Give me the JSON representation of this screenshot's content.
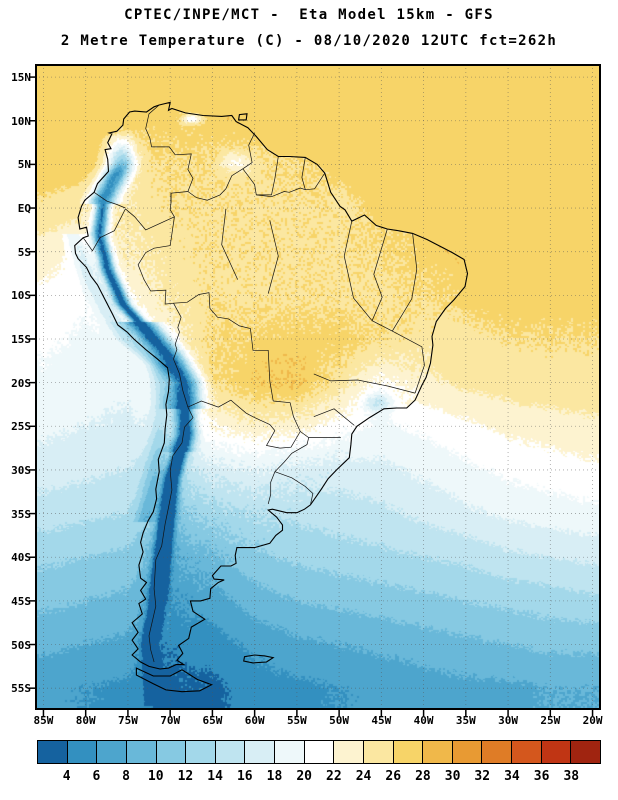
{
  "header": {
    "line1": "CPTEC/INPE/MCT -  Eta Model 15km - GFS",
    "line2": "2 Metre Temperature (C) - 08/10/2020 12UTC fct=262h"
  },
  "axes": {
    "lat": {
      "labels": [
        "15N",
        "10N",
        "5N",
        "EQ",
        "5S",
        "10S",
        "15S",
        "20S",
        "25S",
        "30S",
        "35S",
        "40S",
        "45S",
        "50S",
        "55S"
      ],
      "values": [
        15,
        10,
        5,
        0,
        -5,
        -10,
        -15,
        -20,
        -25,
        -30,
        -35,
        -40,
        -45,
        -50,
        -55
      ]
    },
    "lon": {
      "labels": [
        "85W",
        "80W",
        "75W",
        "70W",
        "65W",
        "60W",
        "55W",
        "50W",
        "45W",
        "40W",
        "35W",
        "30W",
        "25W",
        "20W"
      ],
      "values": [
        -85,
        -80,
        -75,
        -70,
        -65,
        -60,
        -55,
        -50,
        -45,
        -40,
        -35,
        -30,
        -25,
        -20
      ]
    }
  },
  "chart_data": {
    "type": "heatmap",
    "title": "2 Metre Temperature (C)",
    "model": "CPTEC/INPE/MCT Eta Model 15km - GFS",
    "valid": "08/10/2020 12UTC fct=262h",
    "units": "C",
    "extent": {
      "lon_min": -86,
      "lon_max": -19,
      "lat_min": -57.5,
      "lat_max": 16.5
    },
    "levels": [
      4,
      6,
      8,
      10,
      12,
      14,
      16,
      18,
      20,
      22,
      24,
      26,
      28,
      30,
      32,
      34,
      36,
      38
    ],
    "palette": [
      "#15629f",
      "#3390c0",
      "#4da5cd",
      "#69b8d9",
      "#86c9e2",
      "#a3d8ea",
      "#bfe4f0",
      "#d8eef5",
      "#eef8fa",
      "#ffffff",
      "#fdf3d0",
      "#fbe7a1",
      "#f7d468",
      "#f0b84a",
      "#e89a33",
      "#df7c26",
      "#d4571d",
      "#c03514",
      "#a02410"
    ],
    "grid": {
      "lons": [
        -85,
        -80,
        -75,
        -70,
        -65,
        -60,
        -55,
        -50,
        -45,
        -40,
        -35,
        -30,
        -25,
        -20
      ],
      "lats": [
        15,
        10,
        5,
        0,
        -5,
        -10,
        -15,
        -20,
        -25,
        -30,
        -35,
        -40,
        -45,
        -50,
        -55
      ],
      "temps_c": [
        [
          27.5,
          27.5,
          27.5,
          27.5,
          27.5,
          27.5,
          27.5,
          27.5,
          27.5,
          27.5,
          27.0,
          27.0,
          27.0,
          27.0
        ],
        [
          27.5,
          27.5,
          27.0,
          27.0,
          27.0,
          27.5,
          27.5,
          27.5,
          27.5,
          27.5,
          27.0,
          27.0,
          27.0,
          26.5
        ],
        [
          27.5,
          27.0,
          25.0,
          26.0,
          26.0,
          25.5,
          26.0,
          26.5,
          27.0,
          27.0,
          27.0,
          26.5,
          26.5,
          26.5
        ],
        [
          25.5,
          24.5,
          24.5,
          25.5,
          25.5,
          25.5,
          25.5,
          25.5,
          26.5,
          27.0,
          27.0,
          27.0,
          26.5,
          26.5
        ],
        [
          23.0,
          22.0,
          24.0,
          25.0,
          25.5,
          25.5,
          25.5,
          25.5,
          26.0,
          27.0,
          27.5,
          27.0,
          27.0,
          27.0
        ],
        [
          21.5,
          20.5,
          22.0,
          24.5,
          25.5,
          25.5,
          25.5,
          25.5,
          25.5,
          26.0,
          26.5,
          26.5,
          26.5,
          26.5
        ],
        [
          20.5,
          19.5,
          20.0,
          23.0,
          26.0,
          26.5,
          27.0,
          27.0,
          26.0,
          25.0,
          25.5,
          26.0,
          26.0,
          26.0
        ],
        [
          19.5,
          19.0,
          18.5,
          21.0,
          26.0,
          27.5,
          28.0,
          25.0,
          21.5,
          23.5,
          24.5,
          25.0,
          25.5,
          25.5
        ],
        [
          18.5,
          18.0,
          17.5,
          19.0,
          22.0,
          23.5,
          23.0,
          21.0,
          19.5,
          20.5,
          21.5,
          22.5,
          23.0,
          23.5
        ],
        [
          17.0,
          16.5,
          16.0,
          14.0,
          17.0,
          18.0,
          17.0,
          17.0,
          17.5,
          18.5,
          19.5,
          20.5,
          21.0,
          21.5
        ],
        [
          15.0,
          14.5,
          14.0,
          11.0,
          13.0,
          14.0,
          14.5,
          15.0,
          15.5,
          16.5,
          17.5,
          18.5,
          19.0,
          19.5
        ],
        [
          12.5,
          12.0,
          11.5,
          8.0,
          9.5,
          11.5,
          12.5,
          13.0,
          13.5,
          14.0,
          14.5,
          15.5,
          16.0,
          16.5
        ],
        [
          10.5,
          10.0,
          9.5,
          6.0,
          7.0,
          9.0,
          10.0,
          10.5,
          11.0,
          11.5,
          12.0,
          12.5,
          13.0,
          13.5
        ],
        [
          8.5,
          8.0,
          7.5,
          4.5,
          5.0,
          6.5,
          7.5,
          8.0,
          8.5,
          9.0,
          9.5,
          10.0,
          10.5,
          10.5
        ],
        [
          6.5,
          6.0,
          5.5,
          3.0,
          3.5,
          5.0,
          5.5,
          6.0,
          6.5,
          7.0,
          7.5,
          7.5,
          8.0,
          8.0
        ]
      ]
    }
  }
}
